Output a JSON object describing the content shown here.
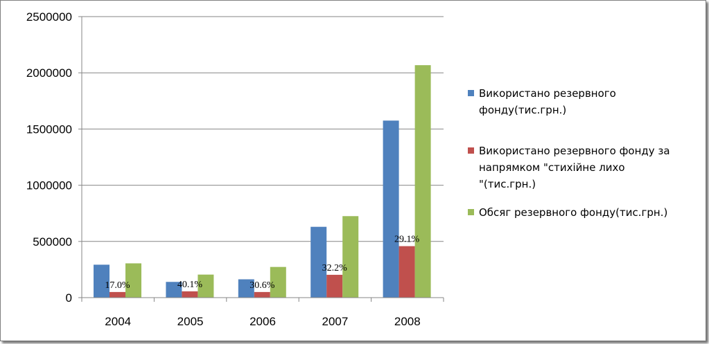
{
  "chart_data": {
    "type": "bar",
    "categories": [
      "2004",
      "2005",
      "2006",
      "2007",
      "2008"
    ],
    "series": [
      {
        "name": "Використано резервного фонду(тис.грн.)",
        "legend_lines": [
          "Використано резервного",
          "фонду(тис.грн.)"
        ],
        "color": "#4f81bd",
        "values": [
          293000,
          140000,
          163000,
          630000,
          1575000
        ]
      },
      {
        "name": "Використано резервного фонду за напрямком \"стихійне лихо \"(тис.грн.)",
        "legend_lines": [
          "Використано резервного фонду за",
          "напрямком \"стихійне лихо",
          "\"(тис.грн.)"
        ],
        "color": "#c0504d",
        "values": [
          50000,
          56000,
          50000,
          203000,
          458000
        ],
        "data_labels": [
          "17.0%",
          "40.1%",
          "30.6%",
          "32.2%",
          "29.1%"
        ]
      },
      {
        "name": "Обсяг резервного фонду(тис.грн.)",
        "legend_lines": [
          "Обсяг резервного фонду(тис.грн.)"
        ],
        "color": "#9bbb59",
        "values": [
          305000,
          205000,
          273000,
          725000,
          2068000
        ]
      }
    ],
    "y_ticks": [
      "0",
      "500000",
      "1000000",
      "1500000",
      "2000000",
      "2500000"
    ],
    "ylim": [
      0,
      2500000
    ],
    "grid": true,
    "legend_position": "right"
  }
}
